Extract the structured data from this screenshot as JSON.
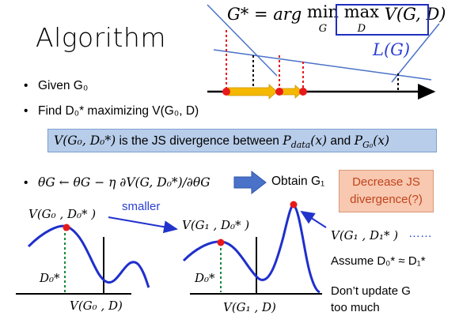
{
  "slide": {
    "title": "Algorithm",
    "formula": "G* = arg min max V(G, D)",
    "formula_parts": {
      "lhs": "G* = arg ",
      "min": "min",
      "min_sub": "G",
      "max": "max",
      "max_sub": "D",
      "rhs": "V(G, D)"
    },
    "lg_label": "L(G)"
  },
  "bullets": {
    "b1": "Given G₀",
    "b2": "Find D₀* maximizing V(G₀, D)",
    "b3": "θG ← θG − η ∂V(G, D₀*)/∂θG",
    "obtain": "Obtain G₁"
  },
  "js_box": "V(G₀, D₀*) is the JS divergence between P_data(x) and P_G₀(x)",
  "js_box_parts": {
    "a": "V(G₀, D₀*)",
    "b": " is the JS divergence between ",
    "c": "P",
    "c_sub": "data",
    "c_rest": "(x)",
    "d": " and ",
    "e": "P",
    "e_sub": "G₀",
    "e_rest": "(x)"
  },
  "decrease_box": {
    "line1": "Decrease JS",
    "line2": "divergence(?)"
  },
  "left_plot": {
    "peak_label": "V(G₀ , D₀* )",
    "d_label": "D₀*",
    "x_label": "V(G₀ , D)"
  },
  "smaller": "smaller",
  "mid_plot": {
    "peak_label": "V(G₁ , D₀* )",
    "d_label": "D₀*",
    "x_label": "V(G₁ , D)"
  },
  "right_notes": {
    "peak_label": "V(G₁ , D₁* )",
    "dots": "……",
    "assume": "Assume D₀* ≈ D₁*",
    "dont_line1": "Don’t update G",
    "dont_line2": "too much"
  },
  "colors": {
    "blue": "#2233cc",
    "red": "#e8191b",
    "orange": "#f5b800",
    "green": "#1a8a3a",
    "box_blue": "#b8cdea",
    "box_orange": "#f8c8b0"
  }
}
